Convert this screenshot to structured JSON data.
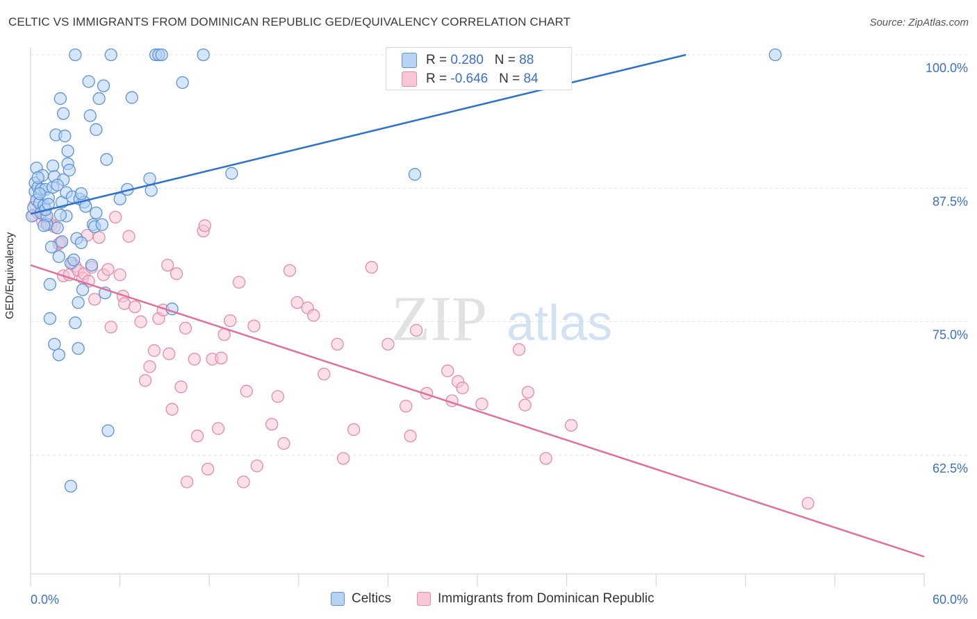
{
  "title": "CELTIC VS IMMIGRANTS FROM DOMINICAN REPUBLIC GED/EQUIVALENCY CORRELATION CHART",
  "source": "Source: ZipAtlas.com",
  "watermark": {
    "zip": "ZIP",
    "atlas": "atlas"
  },
  "colors": {
    "celtic_fill": "#b7d2f3",
    "celtic_stroke": "#5b93d6",
    "celtic_line": "#2f72c9",
    "dom_fill": "#f8c6d6",
    "dom_stroke": "#e58aa8",
    "dom_line": "#e0709a",
    "tick_label": "#3a6fcb",
    "grid": "#e3e3e3"
  },
  "stats": {
    "rows": [
      {
        "r_label": "R = ",
        "r_value": "0.280",
        "n_label": "N = ",
        "n_value": "88"
      },
      {
        "r_label": "R = ",
        "r_value": "-0.646",
        "n_label": "N = ",
        "n_value": "84"
      }
    ]
  },
  "legend": {
    "celtics": "Celtics",
    "dominican": "Immigrants from Dominican Republic"
  },
  "chart_data": {
    "type": "scatter",
    "title": "CELTIC VS IMMIGRANTS FROM DOMINICAN REPUBLIC GED/EQUIVALENCY CORRELATION CHART",
    "xlabel": "",
    "ylabel": "GED/Equivalency",
    "xlim": [
      0,
      60
    ],
    "ylim": [
      51,
      101.5
    ],
    "x_tick_labels": [
      "0.0%",
      "60.0%"
    ],
    "y_ticks": [
      62.5,
      75.0,
      87.5,
      100.0
    ],
    "y_tick_labels": [
      "62.5%",
      "75.0%",
      "87.5%",
      "100.0%"
    ],
    "grid": true,
    "legend_position": "bottom",
    "series": [
      {
        "name": "Celtics",
        "r": 0.28,
        "n": 88,
        "trend": {
          "x": [
            0,
            44
          ],
          "y": [
            85.1,
            100.0
          ]
        },
        "points": [
          [
            0.1,
            84.9
          ],
          [
            0.2,
            85.7
          ],
          [
            0.3,
            87.2
          ],
          [
            0.3,
            88.0
          ],
          [
            0.4,
            86.4
          ],
          [
            0.4,
            89.4
          ],
          [
            0.5,
            87.6
          ],
          [
            0.6,
            86.1
          ],
          [
            0.7,
            85.2
          ],
          [
            0.7,
            87.4
          ],
          [
            0.8,
            88.7
          ],
          [
            0.9,
            85.9
          ],
          [
            1.0,
            87.4
          ],
          [
            1.1,
            84.1
          ],
          [
            1.1,
            84.9
          ],
          [
            1.2,
            86.6
          ],
          [
            1.3,
            78.5
          ],
          [
            1.3,
            75.3
          ],
          [
            1.4,
            82.0
          ],
          [
            1.5,
            89.6
          ],
          [
            1.5,
            87.6
          ],
          [
            1.6,
            72.9
          ],
          [
            1.6,
            88.6
          ],
          [
            1.7,
            92.5
          ],
          [
            1.8,
            83.8
          ],
          [
            1.9,
            81.1
          ],
          [
            1.9,
            71.9
          ],
          [
            2.0,
            95.9
          ],
          [
            2.1,
            86.2
          ],
          [
            2.1,
            82.5
          ],
          [
            2.2,
            94.5
          ],
          [
            2.2,
            88.3
          ],
          [
            2.3,
            92.4
          ],
          [
            2.4,
            87.1
          ],
          [
            2.4,
            84.9
          ],
          [
            2.5,
            91.0
          ],
          [
            2.5,
            89.8
          ],
          [
            2.6,
            89.2
          ],
          [
            2.7,
            80.5
          ],
          [
            2.8,
            86.7
          ],
          [
            2.9,
            80.8
          ],
          [
            3.0,
            100.0
          ],
          [
            3.0,
            74.9
          ],
          [
            3.1,
            82.8
          ],
          [
            3.2,
            76.8
          ],
          [
            3.2,
            72.5
          ],
          [
            3.3,
            86.5
          ],
          [
            3.4,
            82.4
          ],
          [
            3.5,
            78.0
          ],
          [
            3.6,
            86.2
          ],
          [
            3.7,
            85.8
          ],
          [
            3.9,
            97.5
          ],
          [
            4.0,
            94.3
          ],
          [
            4.1,
            80.3
          ],
          [
            4.2,
            84.1
          ],
          [
            4.3,
            83.9
          ],
          [
            4.4,
            93.0
          ],
          [
            4.6,
            95.9
          ],
          [
            4.8,
            84.1
          ],
          [
            4.9,
            97.1
          ],
          [
            5.0,
            77.7
          ],
          [
            5.1,
            90.2
          ],
          [
            5.2,
            64.8
          ],
          [
            5.4,
            100.0
          ],
          [
            6.0,
            86.5
          ],
          [
            6.5,
            87.4
          ],
          [
            6.8,
            96.0
          ],
          [
            8.0,
            88.4
          ],
          [
            8.1,
            87.3
          ],
          [
            8.4,
            100.0
          ],
          [
            8.6,
            100.0
          ],
          [
            8.8,
            100.0
          ],
          [
            9.5,
            76.2
          ],
          [
            10.2,
            97.4
          ],
          [
            11.6,
            100.0
          ],
          [
            13.5,
            88.9
          ],
          [
            25.8,
            88.8
          ],
          [
            50.0,
            100.0
          ],
          [
            2.7,
            59.6
          ],
          [
            1.0,
            85.5
          ],
          [
            0.6,
            87.0
          ],
          [
            1.2,
            86.0
          ],
          [
            0.9,
            84.0
          ],
          [
            2.0,
            85.0
          ],
          [
            4.4,
            85.2
          ],
          [
            0.5,
            88.5
          ],
          [
            1.8,
            87.8
          ],
          [
            3.4,
            87.0
          ]
        ]
      },
      {
        "name": "Immigrants from Dominican Republic",
        "r": -0.646,
        "n": 84,
        "trend": {
          "x": [
            0,
            60
          ],
          "y": [
            80.3,
            53.0
          ]
        },
        "points": [
          [
            0.2,
            85.0
          ],
          [
            0.3,
            86.0
          ],
          [
            0.5,
            85.2
          ],
          [
            0.8,
            84.4
          ],
          [
            1.0,
            84.8
          ],
          [
            1.2,
            84.1
          ],
          [
            1.4,
            84.1
          ],
          [
            1.6,
            83.9
          ],
          [
            1.9,
            82.3
          ],
          [
            2.0,
            82.4
          ],
          [
            2.2,
            79.3
          ],
          [
            2.6,
            79.4
          ],
          [
            2.8,
            80.5
          ],
          [
            3.0,
            80.2
          ],
          [
            3.2,
            79.8
          ],
          [
            3.5,
            79.1
          ],
          [
            3.6,
            79.5
          ],
          [
            3.8,
            83.1
          ],
          [
            3.9,
            78.8
          ],
          [
            4.1,
            80.1
          ],
          [
            4.3,
            77.1
          ],
          [
            4.6,
            82.9
          ],
          [
            4.9,
            79.4
          ],
          [
            5.2,
            79.9
          ],
          [
            5.4,
            74.5
          ],
          [
            5.7,
            84.8
          ],
          [
            6.0,
            79.4
          ],
          [
            6.2,
            77.4
          ],
          [
            6.3,
            76.7
          ],
          [
            6.6,
            83.0
          ],
          [
            7.0,
            76.4
          ],
          [
            7.4,
            75.0
          ],
          [
            7.7,
            69.5
          ],
          [
            8.0,
            70.8
          ],
          [
            8.3,
            72.3
          ],
          [
            8.6,
            75.3
          ],
          [
            8.9,
            76.1
          ],
          [
            9.2,
            80.3
          ],
          [
            9.3,
            72.0
          ],
          [
            9.5,
            66.8
          ],
          [
            9.8,
            79.5
          ],
          [
            10.1,
            68.9
          ],
          [
            10.4,
            74.4
          ],
          [
            10.5,
            60.0
          ],
          [
            11.0,
            71.5
          ],
          [
            11.2,
            64.3
          ],
          [
            11.6,
            83.5
          ],
          [
            11.7,
            84.0
          ],
          [
            11.9,
            61.2
          ],
          [
            12.2,
            71.5
          ],
          [
            12.6,
            65.0
          ],
          [
            12.8,
            71.6
          ],
          [
            13.0,
            73.8
          ],
          [
            13.4,
            75.1
          ],
          [
            14.0,
            78.7
          ],
          [
            14.3,
            60.0
          ],
          [
            14.5,
            68.5
          ],
          [
            15.0,
            74.6
          ],
          [
            15.2,
            61.5
          ],
          [
            16.2,
            65.4
          ],
          [
            16.6,
            68.0
          ],
          [
            17.0,
            63.6
          ],
          [
            17.4,
            79.8
          ],
          [
            17.9,
            76.8
          ],
          [
            18.6,
            76.3
          ],
          [
            19.0,
            75.6
          ],
          [
            19.7,
            70.1
          ],
          [
            20.6,
            72.9
          ],
          [
            21.0,
            62.2
          ],
          [
            21.7,
            64.9
          ],
          [
            22.9,
            80.1
          ],
          [
            24.0,
            72.9
          ],
          [
            25.2,
            67.1
          ],
          [
            25.5,
            64.3
          ],
          [
            25.9,
            74.2
          ],
          [
            26.6,
            68.3
          ],
          [
            28.0,
            70.4
          ],
          [
            28.3,
            67.6
          ],
          [
            28.7,
            69.4
          ],
          [
            29.0,
            68.8
          ],
          [
            30.3,
            67.3
          ],
          [
            32.8,
            72.4
          ],
          [
            33.2,
            67.2
          ],
          [
            33.4,
            68.4
          ]
        ],
        "extra_points": [
          [
            34.6,
            62.2
          ],
          [
            36.3,
            65.3
          ],
          [
            52.2,
            58.0
          ]
        ]
      }
    ]
  }
}
